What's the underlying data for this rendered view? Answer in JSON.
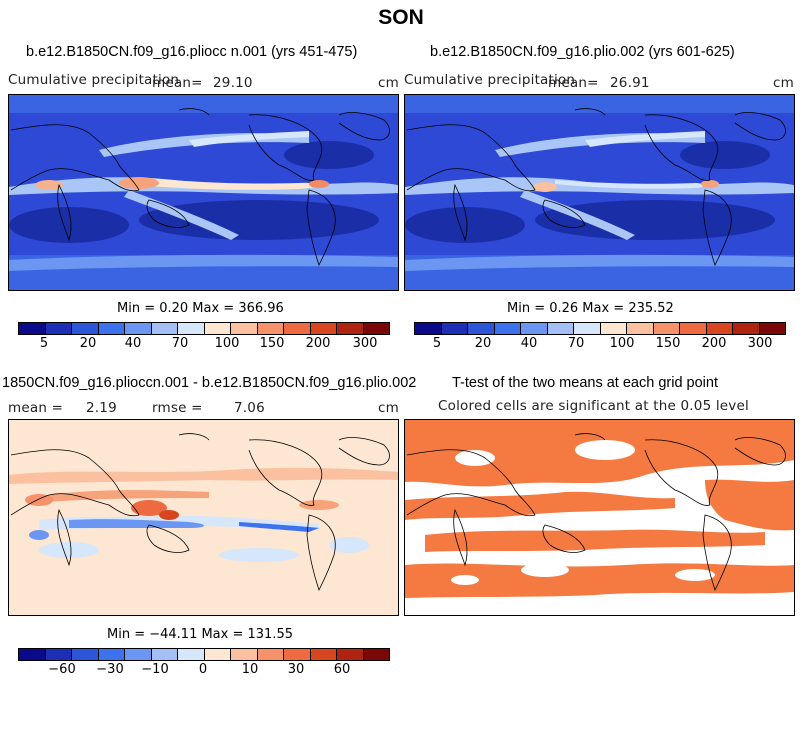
{
  "title": "SON",
  "panels": [
    {
      "title": "b.e12.B1850CN.f09_g16.pliocc n.001 (yrs 451-475)",
      "left_label": "Cumulative precipitation",
      "mean_label": "mean=",
      "mean_value": "29.10",
      "units": "cm",
      "minmax": "Min =    0.20 Max = 366.96"
    },
    {
      "title": "b.e12.B1850CN.f09_g16.plio.002 (yrs 601-625)",
      "left_label": "Cumulative precipitation",
      "mean_label": "mean=",
      "mean_value": "26.91",
      "units": "cm",
      "minmax": "Min =    0.26 Max = 235.52"
    },
    {
      "title": "1850CN.f09_g16.plioccn.001 - b.e12.B1850CN.f09_g16.plio.002",
      "mean_label": "mean =",
      "mean_value": "2.19",
      "rmse_label": "rmse =",
      "rmse_value": "7.06",
      "units": "cm",
      "minmax": "Min = −44.11 Max = 131.55"
    },
    {
      "title": "T-test of the two means at each grid point",
      "subtitle": "Colored cells are significant at the 0.05 level"
    }
  ],
  "colorbar_precip": {
    "colors": [
      "#0a0a8a",
      "#1f2fb5",
      "#2c55d8",
      "#3c72ec",
      "#6b97f2",
      "#a3bff6",
      "#d6e6fb",
      "#fde6d2",
      "#fbc0a0",
      "#f6926a",
      "#ee6a40",
      "#d8461f",
      "#ae2410",
      "#7a0808"
    ],
    "ticks": [
      "5",
      "20",
      "40",
      "70",
      "100",
      "150",
      "200",
      "300"
    ]
  },
  "colorbar_diff": {
    "colors": [
      "#0a0a8a",
      "#1f2fb5",
      "#2c55d8",
      "#3c72ec",
      "#6b97f2",
      "#a3bff6",
      "#d6e6fb",
      "#fde6d2",
      "#fbc0a0",
      "#f6926a",
      "#ee6a40",
      "#d8461f",
      "#ae2410",
      "#7a0808"
    ],
    "ticks": [
      "−60",
      "−30",
      "−10",
      "0",
      "10",
      "30",
      "60"
    ]
  },
  "colors": {
    "ocean_dry": "#2d49d6",
    "ocean_deep": "#1a2ea8",
    "wet_band": "#a9c6f7",
    "rain_max": "#f28a63",
    "diff_bg": "#fde6d2",
    "ttest": "#f47a42"
  }
}
